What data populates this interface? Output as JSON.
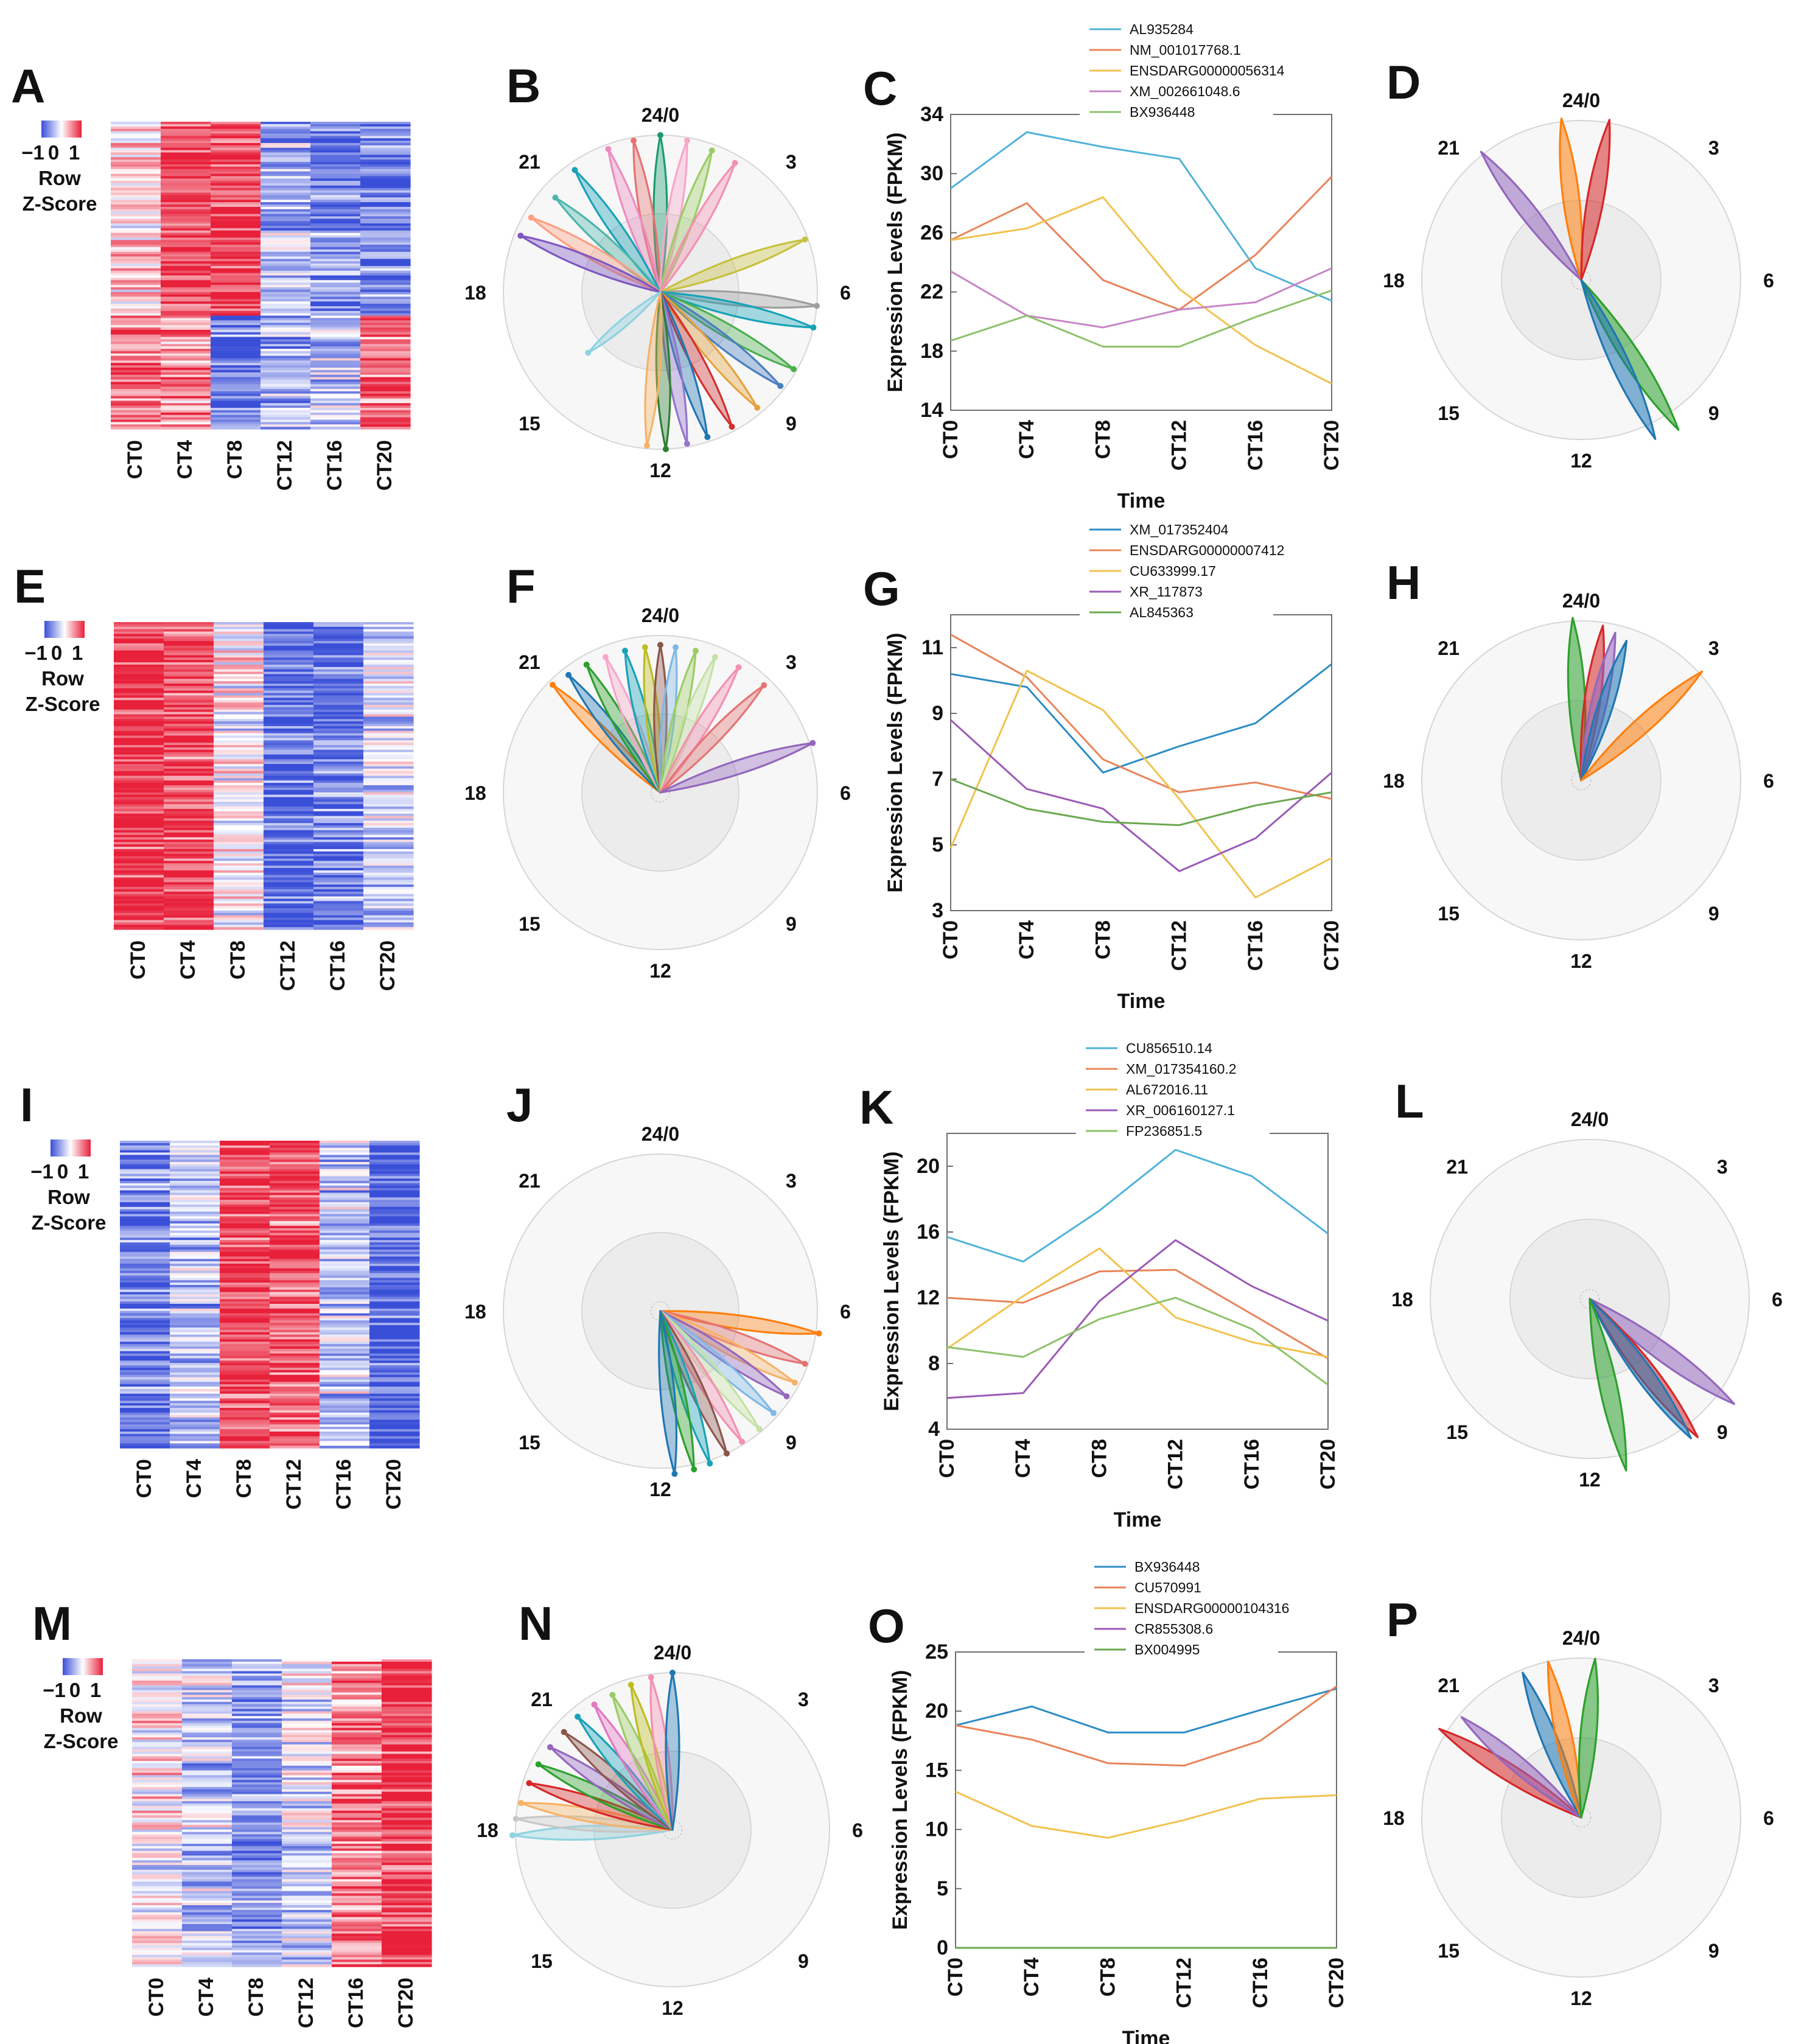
{
  "chart_data": [
    {
      "panel": "A",
      "type": "heatmap",
      "xlabels": [
        "CT0",
        "CT4",
        "CT8",
        "CT12",
        "CT16",
        "CT20"
      ],
      "scale_ticks": [
        "−1",
        "0",
        "1"
      ],
      "scale_label": [
        "Row",
        "Z-Score"
      ],
      "pattern": [
        0.2,
        0.85,
        0.9,
        -0.4,
        -0.6,
        -0.7
      ],
      "pattern2": [
        0.6,
        0.5,
        -0.7,
        -0.4,
        -0.3,
        0.7
      ],
      "split": 0.63,
      "colors": {
        "low": "#3a4fd8",
        "mid": "#ffffff",
        "high": "#e8203a"
      }
    },
    {
      "panel": "B",
      "type": "clock",
      "clock_labels": [
        "24/0",
        "3",
        "6",
        "9",
        "12",
        "15",
        "18",
        "21"
      ],
      "seed": 11,
      "petals": [
        {
          "angle": 0,
          "len": 1.0,
          "color": "#1a9c6f"
        },
        {
          "angle": -10,
          "len": 0.98,
          "color": "#e57373"
        },
        {
          "angle": -20,
          "len": 0.97,
          "color": "#ec8cc0"
        },
        {
          "angle": -35,
          "len": 0.95,
          "color": "#17a2b8"
        },
        {
          "angle": -48,
          "len": 0.9,
          "color": "#4db6ac"
        },
        {
          "angle": -60,
          "len": 0.95,
          "color": "#ff9e80"
        },
        {
          "angle": -68,
          "len": 0.96,
          "color": "#7e57c2"
        },
        {
          "angle": 10,
          "len": 0.98,
          "color": "#f7a6c9"
        },
        {
          "angle": 20,
          "len": 0.96,
          "color": "#9ccc65"
        },
        {
          "angle": 30,
          "len": 0.95,
          "color": "#f48fb1"
        },
        {
          "angle": 70,
          "len": 0.98,
          "color": "#c7c13e"
        },
        {
          "angle": 95,
          "len": 1.0,
          "color": "#9e9e9e"
        },
        {
          "angle": 103,
          "len": 1.0,
          "color": "#17a2b8"
        },
        {
          "angle": 120,
          "len": 0.98,
          "color": "#4caf50"
        },
        {
          "angle": 128,
          "len": 0.97,
          "color": "#4a7fc1"
        },
        {
          "angle": 140,
          "len": 0.96,
          "color": "#e6a23c"
        },
        {
          "angle": 152,
          "len": 0.97,
          "color": "#d32f2f"
        },
        {
          "angle": 162,
          "len": 0.97,
          "color": "#1f77b4"
        },
        {
          "angle": 170,
          "len": 0.98,
          "color": "#9575cd"
        },
        {
          "angle": 178,
          "len": 1.0,
          "color": "#2e7d32"
        },
        {
          "angle": 185,
          "len": 0.98,
          "color": "#f7b267"
        },
        {
          "angle": -130,
          "len": 0.6,
          "color": "#8fd3e0"
        }
      ]
    },
    {
      "panel": "C",
      "type": "line",
      "legend": [
        "AL935284",
        "NM_001017768.1",
        "ENSDARG00000056314",
        "XM_002661048.6",
        "BX936448"
      ],
      "colors": [
        "#4fb3d9",
        "#e8845a",
        "#f1c24d",
        "#c785c7",
        "#8cc26a"
      ],
      "categories": [
        "CT0",
        "CT4",
        "CT8",
        "CT12",
        "CT16",
        "CT20"
      ],
      "yticks": [
        "14",
        "18",
        "22",
        "26",
        "30",
        "34"
      ],
      "ylim": [
        14,
        34
      ],
      "xlabel": "Time",
      "ylabel": "Expression Levels (FPKM)",
      "series": [
        [
          29,
          32.8,
          31.8,
          31,
          23.6,
          21.4
        ],
        [
          25.5,
          28,
          22.8,
          20.8,
          24.5,
          29.8
        ],
        [
          25.5,
          26.3,
          28.4,
          22.2,
          18.4,
          15.8
        ],
        [
          23.4,
          20.4,
          19.6,
          20.8,
          21.3,
          23.6
        ],
        [
          18.7,
          20.4,
          18.3,
          18.3,
          20.3,
          22.1
        ]
      ]
    },
    {
      "panel": "D",
      "type": "clock",
      "clock_labels": [
        "24/0",
        "3",
        "6",
        "9",
        "12",
        "15",
        "18",
        "21"
      ],
      "seed": 0,
      "petals": [
        {
          "angle": -38,
          "len": 1.02,
          "color": "#9467bd"
        },
        {
          "angle": -7,
          "len": 1.02,
          "color": "#ff7f0e"
        },
        {
          "angle": 10,
          "len": 1.02,
          "color": "#d62728"
        },
        {
          "angle": 147,
          "len": 1.12,
          "color": "#2ca02c"
        },
        {
          "angle": 155,
          "len": 1.1,
          "color": "#1f77b4"
        }
      ]
    },
    {
      "panel": "E",
      "type": "heatmap",
      "xlabels": [
        "CT0",
        "CT4",
        "CT8",
        "CT12",
        "CT16",
        "CT20"
      ],
      "scale_ticks": [
        "−1",
        "0",
        "1"
      ],
      "scale_label": [
        "Row",
        "Z-Score"
      ],
      "pattern": [
        0.95,
        0.8,
        0.0,
        -0.85,
        -0.7,
        -0.25
      ],
      "pattern2": [
        0.95,
        0.8,
        0.0,
        -0.85,
        -0.7,
        -0.25
      ],
      "split": 1.0,
      "colors": {
        "low": "#3a4fd8",
        "mid": "#ffffff",
        "high": "#e8203a"
      }
    },
    {
      "panel": "F",
      "type": "clock",
      "clock_labels": [
        "24/0",
        "3",
        "6",
        "9",
        "12",
        "15",
        "18",
        "21"
      ],
      "seed": 0,
      "petals": [
        {
          "angle": -45,
          "len": 0.97,
          "color": "#ff7f0e"
        },
        {
          "angle": -38,
          "len": 0.95,
          "color": "#1f77b4"
        },
        {
          "angle": -30,
          "len": 0.94,
          "color": "#2ca02c"
        },
        {
          "angle": -22,
          "len": 0.93,
          "color": "#f7a6c9"
        },
        {
          "angle": -14,
          "len": 0.93,
          "color": "#17a2b8"
        },
        {
          "angle": -6,
          "len": 0.93,
          "color": "#bcbd22"
        },
        {
          "angle": 0,
          "len": 0.94,
          "color": "#8c564b"
        },
        {
          "angle": 6,
          "len": 0.93,
          "color": "#7fb8e6"
        },
        {
          "angle": 14,
          "len": 0.93,
          "color": "#9ccc65"
        },
        {
          "angle": 22,
          "len": 0.93,
          "color": "#c5e1a5"
        },
        {
          "angle": 32,
          "len": 0.94,
          "color": "#f48fb1"
        },
        {
          "angle": 44,
          "len": 0.95,
          "color": "#e57373"
        },
        {
          "angle": 72,
          "len": 1.02,
          "color": "#9467bd"
        }
      ]
    },
    {
      "panel": "G",
      "type": "line",
      "legend": [
        "XM_017352404",
        "ENSDARG00000007412",
        "CU633999.17",
        "XR_117873",
        "AL845363"
      ],
      "colors": [
        "#2b8cc4",
        "#e8845a",
        "#f1c24d",
        "#9b59b6",
        "#6aa84f"
      ],
      "categories": [
        "CT0",
        "CT4",
        "CT8",
        "CT12",
        "CT16",
        "CT20"
      ],
      "yticks": [
        "3",
        "5",
        "7",
        "9",
        "11"
      ],
      "ylim": [
        3,
        12
      ],
      "xlabel": "Time",
      "ylabel": "Expression Levels (FPKM)",
      "series": [
        [
          10.2,
          9.8,
          7.2,
          8,
          8.7,
          10.5
        ],
        [
          11.4,
          10.1,
          7.6,
          6.6,
          6.9,
          6.4
        ],
        [
          4.9,
          10.3,
          9.1,
          6.4,
          3.4,
          4.6
        ],
        [
          8.8,
          6.7,
          6.1,
          4.2,
          5.2,
          7.2
        ],
        [
          7,
          6.1,
          5.7,
          5.6,
          6.2,
          6.6
        ]
      ]
    },
    {
      "panel": "H",
      "type": "clock",
      "clock_labels": [
        "24/0",
        "3",
        "6",
        "9",
        "12",
        "15",
        "18",
        "21"
      ],
      "seed": 0,
      "petals": [
        {
          "angle": -3,
          "len": 1.02,
          "color": "#2ca02c"
        },
        {
          "angle": 8,
          "len": 0.98,
          "color": "#d62728"
        },
        {
          "angle": 13,
          "len": 0.95,
          "color": "#9467bd"
        },
        {
          "angle": 18,
          "len": 0.92,
          "color": "#1f77b4"
        },
        {
          "angle": 48,
          "len": 1.02,
          "color": "#ff7f0e"
        }
      ]
    },
    {
      "panel": "I",
      "type": "heatmap",
      "xlabels": [
        "CT0",
        "CT4",
        "CT8",
        "CT12",
        "CT16",
        "CT20"
      ],
      "scale_ticks": [
        "−1",
        "0",
        "1"
      ],
      "scale_label": [
        "Row",
        "Z-Score"
      ],
      "pattern": [
        -0.7,
        -0.3,
        0.85,
        0.75,
        -0.3,
        -0.9
      ],
      "pattern2": [
        -0.7,
        -0.3,
        0.85,
        0.75,
        -0.3,
        -0.9
      ],
      "split": 1.0,
      "colors": {
        "low": "#3a4fd8",
        "mid": "#ffffff",
        "high": "#e8203a"
      }
    },
    {
      "panel": "J",
      "type": "clock",
      "clock_labels": [
        "24/0",
        "3",
        "6",
        "9",
        "12",
        "15",
        "18",
        "21"
      ],
      "seed": 0,
      "petals": [
        {
          "angle": 98,
          "len": 1.02,
          "color": "#ff7f0e"
        },
        {
          "angle": 110,
          "len": 0.98,
          "color": "#e57373"
        },
        {
          "angle": 118,
          "len": 0.97,
          "color": "#f7b267"
        },
        {
          "angle": 124,
          "len": 0.97,
          "color": "#9467bd"
        },
        {
          "angle": 132,
          "len": 0.97,
          "color": "#7fb8e6"
        },
        {
          "angle": 140,
          "len": 0.98,
          "color": "#c5e1a5"
        },
        {
          "angle": 148,
          "len": 0.98,
          "color": "#f48fb1"
        },
        {
          "angle": 155,
          "len": 1.0,
          "color": "#8c564b"
        },
        {
          "angle": 162,
          "len": 1.02,
          "color": "#17a2b8"
        },
        {
          "angle": 168,
          "len": 1.03,
          "color": "#2ca02c"
        },
        {
          "angle": 175,
          "len": 1.04,
          "color": "#1f77b4"
        }
      ]
    },
    {
      "panel": "K",
      "type": "line",
      "legend": [
        "CU856510.14",
        "XM_017354160.2",
        "AL672016.11",
        "XR_006160127.1",
        "FP236851.5"
      ],
      "colors": [
        "#4fb3d9",
        "#e8845a",
        "#f1c24d",
        "#9b59b6",
        "#8cc26a"
      ],
      "categories": [
        "CT0",
        "CT4",
        "CT8",
        "CT12",
        "CT16",
        "CT20"
      ],
      "yticks": [
        "4",
        "8",
        "12",
        "16",
        "20"
      ],
      "ylim": [
        4,
        22
      ],
      "xlabel": "Time",
      "ylabel": "Expression Levels (FPKM)",
      "series": [
        [
          15.7,
          14.2,
          17.3,
          21,
          19.4,
          15.9
        ],
        [
          12,
          11.7,
          13.6,
          13.7,
          11,
          8.3
        ],
        [
          8.9,
          12.1,
          15,
          10.8,
          9.3,
          8.4
        ],
        [
          5.9,
          6.2,
          11.8,
          15.5,
          12.7,
          10.6
        ],
        [
          9,
          8.4,
          10.7,
          12,
          10.1,
          6.7
        ]
      ]
    },
    {
      "panel": "L",
      "type": "clock",
      "clock_labels": [
        "24/0",
        "3",
        "6",
        "9",
        "12",
        "15",
        "18",
        "21"
      ],
      "seed": 0,
      "petals": [
        {
          "angle": 126,
          "len": 1.12,
          "color": "#9467bd"
        },
        {
          "angle": 142,
          "len": 1.1,
          "color": "#d62728"
        },
        {
          "angle": 144,
          "len": 1.08,
          "color": "#1f77b4"
        },
        {
          "angle": 168,
          "len": 1.1,
          "color": "#2ca02c"
        }
      ]
    },
    {
      "panel": "M",
      "type": "heatmap",
      "xlabels": [
        "CT0",
        "CT4",
        "CT8",
        "CT12",
        "CT16",
        "CT20"
      ],
      "scale_ticks": [
        "−1",
        "0",
        "1"
      ],
      "scale_label": [
        "Row",
        "Z-Score"
      ],
      "pattern": [
        0.05,
        -0.3,
        -0.55,
        -0.15,
        0.6,
        0.95
      ],
      "pattern2": [
        0.05,
        -0.3,
        -0.55,
        -0.15,
        0.6,
        0.95
      ],
      "split": 1.0,
      "colors": {
        "low": "#3a4fd8",
        "mid": "#ffffff",
        "high": "#e8203a"
      }
    },
    {
      "panel": "N",
      "type": "clock",
      "clock_labels": [
        "24/0",
        "3",
        "6",
        "9",
        "12",
        "15",
        "18",
        "21"
      ],
      "seed": 0,
      "petals": [
        {
          "angle": -92,
          "len": 1.02,
          "color": "#8fd3e0"
        },
        {
          "angle": -86,
          "len": 1.0,
          "color": "#c7c7c7"
        },
        {
          "angle": -80,
          "len": 0.98,
          "color": "#f7b267"
        },
        {
          "angle": -72,
          "len": 0.96,
          "color": "#d62728"
        },
        {
          "angle": -64,
          "len": 0.95,
          "color": "#2ca02c"
        },
        {
          "angle": -56,
          "len": 0.94,
          "color": "#9467bd"
        },
        {
          "angle": -48,
          "len": 0.93,
          "color": "#8c564b"
        },
        {
          "angle": -40,
          "len": 0.94,
          "color": "#17a2b8"
        },
        {
          "angle": -32,
          "len": 0.94,
          "color": "#e377c2"
        },
        {
          "angle": -24,
          "len": 0.94,
          "color": "#9ccc65"
        },
        {
          "angle": -16,
          "len": 0.96,
          "color": "#bcbd22"
        },
        {
          "angle": -8,
          "len": 0.98,
          "color": "#f48fb1"
        },
        {
          "angle": 0,
          "len": 1.0,
          "color": "#1f77b4"
        }
      ]
    },
    {
      "panel": "O",
      "type": "line",
      "legend": [
        "BX936448",
        "CU570991",
        "ENSDARG00000104316",
        "CR855308.6",
        "BX004995"
      ],
      "colors": [
        "#2b8cc4",
        "#e8845a",
        "#f1c24d",
        "#9b59b6",
        "#6aa84f"
      ],
      "categories": [
        "CT0",
        "CT4",
        "CT8",
        "CT12",
        "CT16",
        "CT20"
      ],
      "yticks": [
        "0",
        "5",
        "10",
        "15",
        "20",
        "25"
      ],
      "ylim": [
        0,
        25
      ],
      "xlabel": "Time",
      "ylabel": "Expression Levels (FPKM)",
      "series": [
        [
          18.8,
          20.4,
          18.2,
          18.2,
          20.1,
          21.9
        ],
        [
          18.8,
          17.6,
          15.6,
          15.4,
          17.5,
          22.1
        ],
        [
          13.2,
          10.3,
          9.3,
          10.8,
          12.6,
          12.9
        ],
        [
          0,
          0,
          0,
          0,
          0,
          0
        ],
        [
          0,
          0,
          0,
          0,
          0,
          0
        ]
      ]
    },
    {
      "panel": "P",
      "type": "clock",
      "clock_labels": [
        "24/0",
        "3",
        "6",
        "9",
        "12",
        "15",
        "18",
        "21"
      ],
      "seed": 0,
      "petals": [
        {
          "angle": -58,
          "len": 1.05,
          "color": "#d62728"
        },
        {
          "angle": -50,
          "len": 0.98,
          "color": "#9467bd"
        },
        {
          "angle": -22,
          "len": 0.98,
          "color": "#1f77b4"
        },
        {
          "angle": -12,
          "len": 1.0,
          "color": "#ff7f0e"
        },
        {
          "angle": 5,
          "len": 1.0,
          "color": "#2ca02c"
        }
      ]
    }
  ]
}
